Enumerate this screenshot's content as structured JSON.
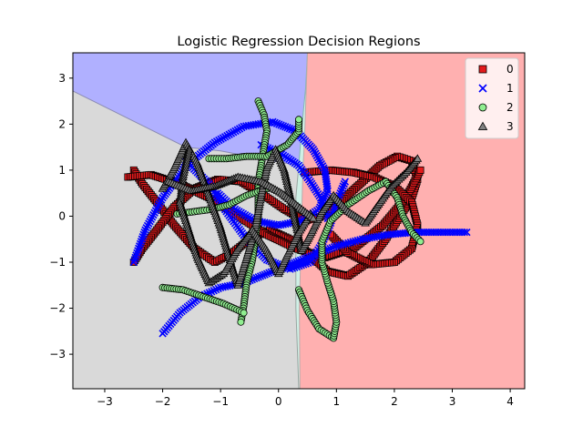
{
  "chart_data": {
    "type": "scatter",
    "title": "Logistic Regression Decision Regions",
    "xlabel": "",
    "ylabel": "",
    "xlim": [
      -3.55,
      4.25
    ],
    "ylim": [
      -3.75,
      3.55
    ],
    "xticks": [
      -3,
      -2,
      -1,
      0,
      1,
      2,
      3,
      4
    ],
    "yticks": [
      -3,
      -2,
      -1,
      0,
      1,
      2,
      3
    ],
    "legend_position": "top-right",
    "regions": [
      {
        "class": "0",
        "color": "#ffb0b0"
      },
      {
        "class": "1",
        "color": "#b0b0ff"
      },
      {
        "class": "2",
        "color": "#cff0e6"
      },
      {
        "class": "3",
        "color": "#d9d9d9"
      }
    ],
    "boundaries": {
      "grey_blue": [
        [
          -3.55,
          2.72
        ],
        [
          -1.6,
          1.5
        ],
        [
          -1.0,
          1.42
        ],
        [
          -0.1,
          1.2
        ],
        [
          0.35,
          1.1
        ]
      ],
      "blue_cyan": [
        [
          0.35,
          1.1
        ],
        [
          0.4,
          1.9
        ],
        [
          0.47,
          2.8
        ],
        [
          0.5,
          3.55
        ]
      ],
      "cyan_pink": [
        [
          0.5,
          3.55
        ],
        [
          0.45,
          1.7
        ],
        [
          0.42,
          1.0
        ],
        [
          0.4,
          0.0
        ],
        [
          0.38,
          -1.0
        ],
        [
          0.36,
          -2.0
        ],
        [
          0.37,
          -3.75
        ]
      ],
      "cyan_grey": [
        [
          0.35,
          1.1
        ],
        [
          0.3,
          0.4
        ],
        [
          0.3,
          -1.0
        ],
        [
          0.3,
          -2.0
        ],
        [
          0.35,
          -3.75
        ]
      ]
    },
    "series": [
      {
        "name": "0",
        "marker": "s",
        "color": "#e31a1c",
        "edgecolor": "#000000",
        "paths": [
          [
            [
              -2.5,
              1.0
            ],
            [
              -2.35,
              0.7
            ],
            [
              -2.1,
              0.3
            ],
            [
              -1.8,
              -0.2
            ],
            [
              -1.45,
              -0.7
            ],
            [
              -1.1,
              -1.0
            ],
            [
              -0.8,
              -0.8
            ],
            [
              -0.5,
              -0.5
            ],
            [
              -0.15,
              -0.3
            ],
            [
              0.2,
              -0.5
            ],
            [
              0.5,
              -0.8
            ],
            [
              0.85,
              -1.2
            ],
            [
              1.2,
              -1.3
            ],
            [
              1.55,
              -1.0
            ],
            [
              1.85,
              -0.5
            ],
            [
              2.1,
              0.0
            ],
            [
              2.3,
              0.4
            ],
            [
              2.4,
              0.8
            ],
            [
              2.3,
              1.2
            ],
            [
              2.05,
              1.3
            ],
            [
              1.75,
              1.1
            ],
            [
              1.45,
              0.75
            ],
            [
              1.1,
              0.35
            ],
            [
              0.75,
              0.0
            ],
            [
              0.45,
              -0.1
            ],
            [
              0.1,
              0.15
            ],
            [
              -0.25,
              0.45
            ],
            [
              -0.65,
              0.75
            ],
            [
              -1.05,
              0.8
            ],
            [
              -1.45,
              0.6
            ],
            [
              -1.8,
              0.2
            ],
            [
              -2.1,
              -0.3
            ],
            [
              -2.35,
              -0.7
            ],
            [
              -2.5,
              -1.0
            ]
          ],
          [
            [
              -2.6,
              0.85
            ],
            [
              -2.2,
              0.9
            ],
            [
              -1.7,
              0.7
            ],
            [
              -1.2,
              0.4
            ],
            [
              -0.7,
              0.0
            ],
            [
              -0.2,
              -0.4
            ],
            [
              0.3,
              -0.7
            ],
            [
              0.8,
              -0.9
            ],
            [
              1.3,
              -0.7
            ],
            [
              1.8,
              -0.2
            ],
            [
              2.2,
              0.4
            ],
            [
              2.45,
              1.0
            ]
          ],
          [
            [
              0.45,
              0.95
            ],
            [
              0.9,
              1.0
            ],
            [
              1.3,
              0.95
            ],
            [
              1.65,
              0.85
            ],
            [
              2.0,
              0.65
            ],
            [
              2.3,
              0.3
            ],
            [
              2.4,
              -0.2
            ],
            [
              2.3,
              -0.7
            ],
            [
              2.0,
              -1.0
            ],
            [
              1.6,
              -1.05
            ],
            [
              1.2,
              -0.8
            ],
            [
              0.9,
              -0.4
            ]
          ]
        ]
      },
      {
        "name": "1",
        "marker": "x",
        "color": "#0000ff",
        "edgecolor": "#0000ff",
        "paths": [
          [
            [
              -2.5,
              -1.0
            ],
            [
              -2.3,
              -0.3
            ],
            [
              -2.0,
              0.4
            ],
            [
              -1.6,
              1.1
            ],
            [
              -1.1,
              1.6
            ],
            [
              -0.6,
              1.95
            ],
            [
              -0.1,
              2.05
            ],
            [
              0.3,
              1.85
            ],
            [
              0.6,
              1.45
            ],
            [
              0.8,
              1.0
            ],
            [
              0.85,
              0.55
            ],
            [
              0.7,
              0.15
            ],
            [
              0.4,
              -0.1
            ],
            [
              0.0,
              -0.2
            ],
            [
              -0.4,
              -0.1
            ],
            [
              -0.75,
              0.15
            ],
            [
              -1.05,
              0.5
            ]
          ],
          [
            [
              -2.0,
              -2.55
            ],
            [
              -1.7,
              -2.1
            ],
            [
              -1.35,
              -1.75
            ],
            [
              -1.0,
              -1.55
            ],
            [
              -0.6,
              -1.45
            ],
            [
              -0.2,
              -1.25
            ],
            [
              0.2,
              -1.05
            ],
            [
              0.6,
              -0.85
            ],
            [
              1.0,
              -0.65
            ],
            [
              1.45,
              -0.5
            ],
            [
              1.9,
              -0.4
            ],
            [
              2.35,
              -0.35
            ],
            [
              2.8,
              -0.35
            ],
            [
              3.25,
              -0.35
            ]
          ],
          [
            [
              -1.6,
              1.2
            ],
            [
              -1.2,
              0.7
            ],
            [
              -0.9,
              0.1
            ],
            [
              -0.55,
              -0.5
            ],
            [
              -0.2,
              -0.95
            ],
            [
              0.2,
              -1.15
            ],
            [
              0.55,
              -1.0
            ],
            [
              0.75,
              -0.6
            ],
            [
              0.9,
              -0.15
            ],
            [
              1.0,
              0.3
            ],
            [
              1.15,
              0.75
            ]
          ],
          [
            [
              -0.3,
              1.55
            ],
            [
              0.05,
              1.35
            ],
            [
              0.35,
              1.1
            ],
            [
              0.55,
              0.75
            ],
            [
              0.75,
              0.35
            ],
            [
              0.85,
              -0.05
            ]
          ]
        ]
      },
      {
        "name": "2",
        "marker": "o",
        "color": "#90ee90",
        "edgecolor": "#000000",
        "paths": [
          [
            [
              -0.35,
              2.5
            ],
            [
              -0.25,
              2.2
            ],
            [
              -0.2,
              1.85
            ],
            [
              -0.25,
              1.5
            ],
            [
              -0.3,
              1.1
            ],
            [
              -0.35,
              0.75
            ],
            [
              -0.35,
              0.35
            ],
            [
              -0.35,
              -0.05
            ],
            [
              -0.4,
              -0.5
            ],
            [
              -0.45,
              -0.95
            ],
            [
              -0.55,
              -1.45
            ],
            [
              -0.6,
              -1.95
            ],
            [
              -0.65,
              -2.3
            ]
          ],
          [
            [
              -2.0,
              -1.55
            ],
            [
              -1.65,
              -1.6
            ],
            [
              -1.3,
              -1.75
            ],
            [
              -0.95,
              -1.9
            ],
            [
              -0.6,
              -2.1
            ]
          ],
          [
            [
              -1.2,
              1.25
            ],
            [
              -0.9,
              1.25
            ],
            [
              -0.55,
              1.3
            ],
            [
              -0.2,
              1.3
            ],
            [
              0.15,
              1.55
            ],
            [
              0.35,
              1.85
            ],
            [
              0.35,
              2.1
            ]
          ],
          [
            [
              0.35,
              -1.6
            ],
            [
              0.5,
              -2.05
            ],
            [
              0.7,
              -2.45
            ],
            [
              0.95,
              -2.65
            ],
            [
              1.0,
              -2.3
            ],
            [
              0.95,
              -1.85
            ],
            [
              0.85,
              -1.45
            ],
            [
              0.75,
              -1.0
            ],
            [
              0.75,
              -0.55
            ],
            [
              0.9,
              -0.1
            ],
            [
              1.2,
              0.25
            ],
            [
              1.55,
              0.55
            ],
            [
              1.85,
              0.75
            ],
            [
              2.05,
              0.4
            ],
            [
              2.15,
              0.0
            ],
            [
              2.3,
              -0.35
            ],
            [
              2.45,
              -0.55
            ]
          ],
          [
            [
              -1.75,
              0.05
            ],
            [
              -1.45,
              0.1
            ],
            [
              -1.15,
              0.15
            ],
            [
              -0.85,
              0.25
            ],
            [
              -0.55,
              0.45
            ],
            [
              -0.2,
              0.6
            ]
          ]
        ]
      },
      {
        "name": "3",
        "marker": "^",
        "color": "#808080",
        "edgecolor": "#000000",
        "paths": [
          [
            [
              -2.0,
              0.6
            ],
            [
              -1.8,
              1.05
            ],
            [
              -1.6,
              1.6
            ],
            [
              -1.4,
              1.15
            ],
            [
              -1.2,
              0.45
            ],
            [
              -1.0,
              -0.25
            ],
            [
              -0.85,
              -0.9
            ],
            [
              -0.7,
              -1.5
            ],
            [
              -0.55,
              -0.9
            ],
            [
              -0.4,
              -0.25
            ],
            [
              -0.3,
              0.45
            ],
            [
              -0.2,
              1.05
            ],
            [
              -0.05,
              1.45
            ],
            [
              0.1,
              1.0
            ],
            [
              0.2,
              0.45
            ],
            [
              0.3,
              -0.15
            ],
            [
              0.4,
              -0.75
            ],
            [
              0.55,
              -0.4
            ],
            [
              0.75,
              0.1
            ],
            [
              0.95,
              0.45
            ],
            [
              1.2,
              0.1
            ],
            [
              1.5,
              -0.15
            ],
            [
              1.75,
              0.3
            ],
            [
              1.95,
              0.65
            ],
            [
              2.2,
              0.95
            ],
            [
              2.4,
              1.25
            ]
          ],
          [
            [
              -1.55,
              1.45
            ],
            [
              -1.65,
              0.85
            ],
            [
              -1.7,
              0.3
            ],
            [
              -1.55,
              -0.3
            ],
            [
              -1.4,
              -0.9
            ],
            [
              -1.2,
              -1.45
            ],
            [
              -0.95,
              -1.25
            ],
            [
              -0.7,
              -0.7
            ],
            [
              -0.45,
              -0.3
            ],
            [
              -0.2,
              -0.75
            ],
            [
              0.0,
              -1.25
            ],
            [
              0.15,
              -0.85
            ],
            [
              0.35,
              -0.35
            ],
            [
              0.55,
              0.05
            ]
          ],
          [
            [
              -1.9,
              0.75
            ],
            [
              -1.5,
              0.55
            ],
            [
              -1.1,
              0.65
            ],
            [
              -0.7,
              0.85
            ],
            [
              -0.3,
              0.75
            ],
            [
              0.05,
              0.5
            ],
            [
              0.3,
              0.25
            ],
            [
              0.6,
              -0.05
            ]
          ]
        ]
      }
    ]
  }
}
